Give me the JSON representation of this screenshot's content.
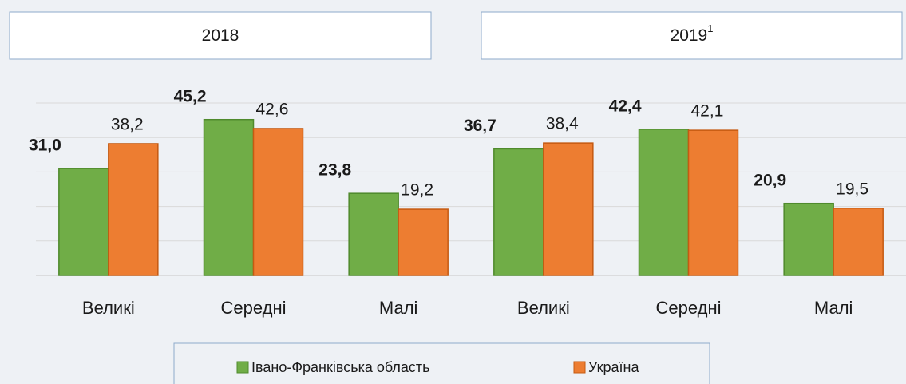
{
  "chart_data": {
    "type": "bar",
    "groups": [
      {
        "label": "2018"
      },
      {
        "label": "2019",
        "note": "1"
      }
    ],
    "categories": [
      "Великі",
      "Середні",
      "Малі",
      "Великі",
      "Середні",
      "Малі"
    ],
    "series": [
      {
        "name": "Івано-Франківська область",
        "color": "#70ad47",
        "values": [
          31.0,
          45.2,
          23.8,
          36.7,
          42.4,
          20.9
        ],
        "value_labels": [
          "31,0",
          "45,2",
          "23,8",
          "36,7",
          "42,4",
          "20,9"
        ]
      },
      {
        "name": "Україна",
        "color": "#ed7d31",
        "values": [
          38.2,
          42.6,
          19.2,
          38.4,
          42.1,
          19.5
        ],
        "value_labels": [
          "38,2",
          "42,6",
          "19,2",
          "38,4",
          "42,1",
          "19,5"
        ]
      }
    ],
    "ylim": [
      0,
      50
    ],
    "yticks": [
      0,
      10,
      20,
      30,
      40,
      50
    ],
    "grid": true
  }
}
